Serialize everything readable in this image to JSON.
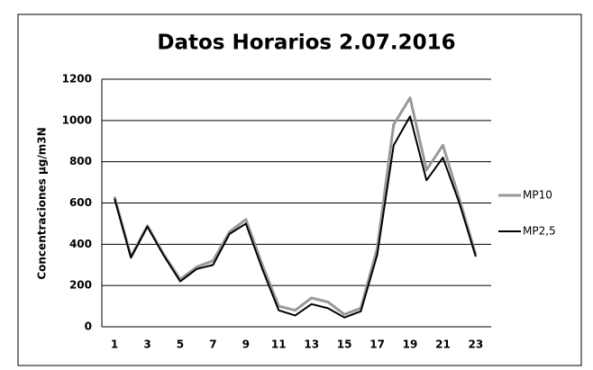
{
  "chart_data": {
    "type": "line",
    "title": "Datos Horarios 2.07.2016",
    "y_label": "Concentraciones µg/m3N",
    "categories": [
      "1",
      null,
      "3",
      null,
      "5",
      null,
      "7",
      null,
      "9",
      null,
      "11",
      null,
      "13",
      null,
      "15",
      null,
      "17",
      null,
      "19",
      null,
      "21",
      null,
      "23"
    ],
    "series": [
      {
        "name": "MP10",
        "color": "#999999",
        "values": [
          630,
          340,
          490,
          350,
          230,
          290,
          320,
          460,
          520,
          300,
          100,
          80,
          140,
          120,
          60,
          90,
          380,
          980,
          1110,
          760,
          880,
          620,
          350
        ]
      },
      {
        "name": "MP2,5",
        "color": "#000000",
        "values": [
          620,
          335,
          485,
          345,
          220,
          280,
          300,
          450,
          500,
          280,
          80,
          55,
          110,
          90,
          45,
          75,
          350,
          880,
          1020,
          710,
          820,
          600,
          340
        ]
      }
    ],
    "ylim": [
      0,
      1200
    ],
    "yticks": [
      0,
      200,
      400,
      600,
      800,
      1000,
      1200
    ],
    "grid": true,
    "legend": "right"
  }
}
